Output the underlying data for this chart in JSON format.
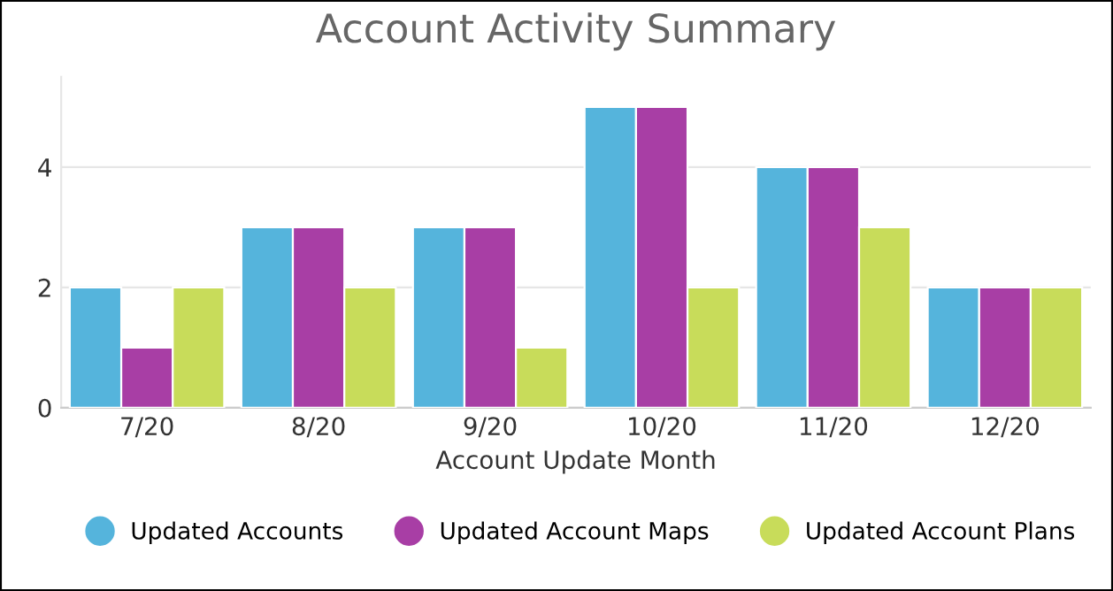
{
  "chart_data": {
    "type": "bar",
    "title": "Account Activity Summary",
    "xlabel": "Account Update Month",
    "categories": [
      "7/20",
      "8/20",
      "9/20",
      "10/20",
      "11/20",
      "12/20"
    ],
    "series": [
      {
        "name": "Updated Accounts",
        "color": "#55b4dc",
        "values": [
          2,
          3,
          3,
          5,
          4,
          2
        ]
      },
      {
        "name": "Updated Account Maps",
        "color": "#a83ea5",
        "values": [
          1,
          3,
          3,
          5,
          4,
          2
        ]
      },
      {
        "name": "Updated Account Plans",
        "color": "#c8dc5a",
        "values": [
          2,
          2,
          1,
          2,
          3,
          2
        ]
      }
    ],
    "ylim": [
      0,
      5.5
    ],
    "yticks": [
      0,
      2,
      4
    ],
    "grid": "y",
    "legend": "bottom"
  }
}
